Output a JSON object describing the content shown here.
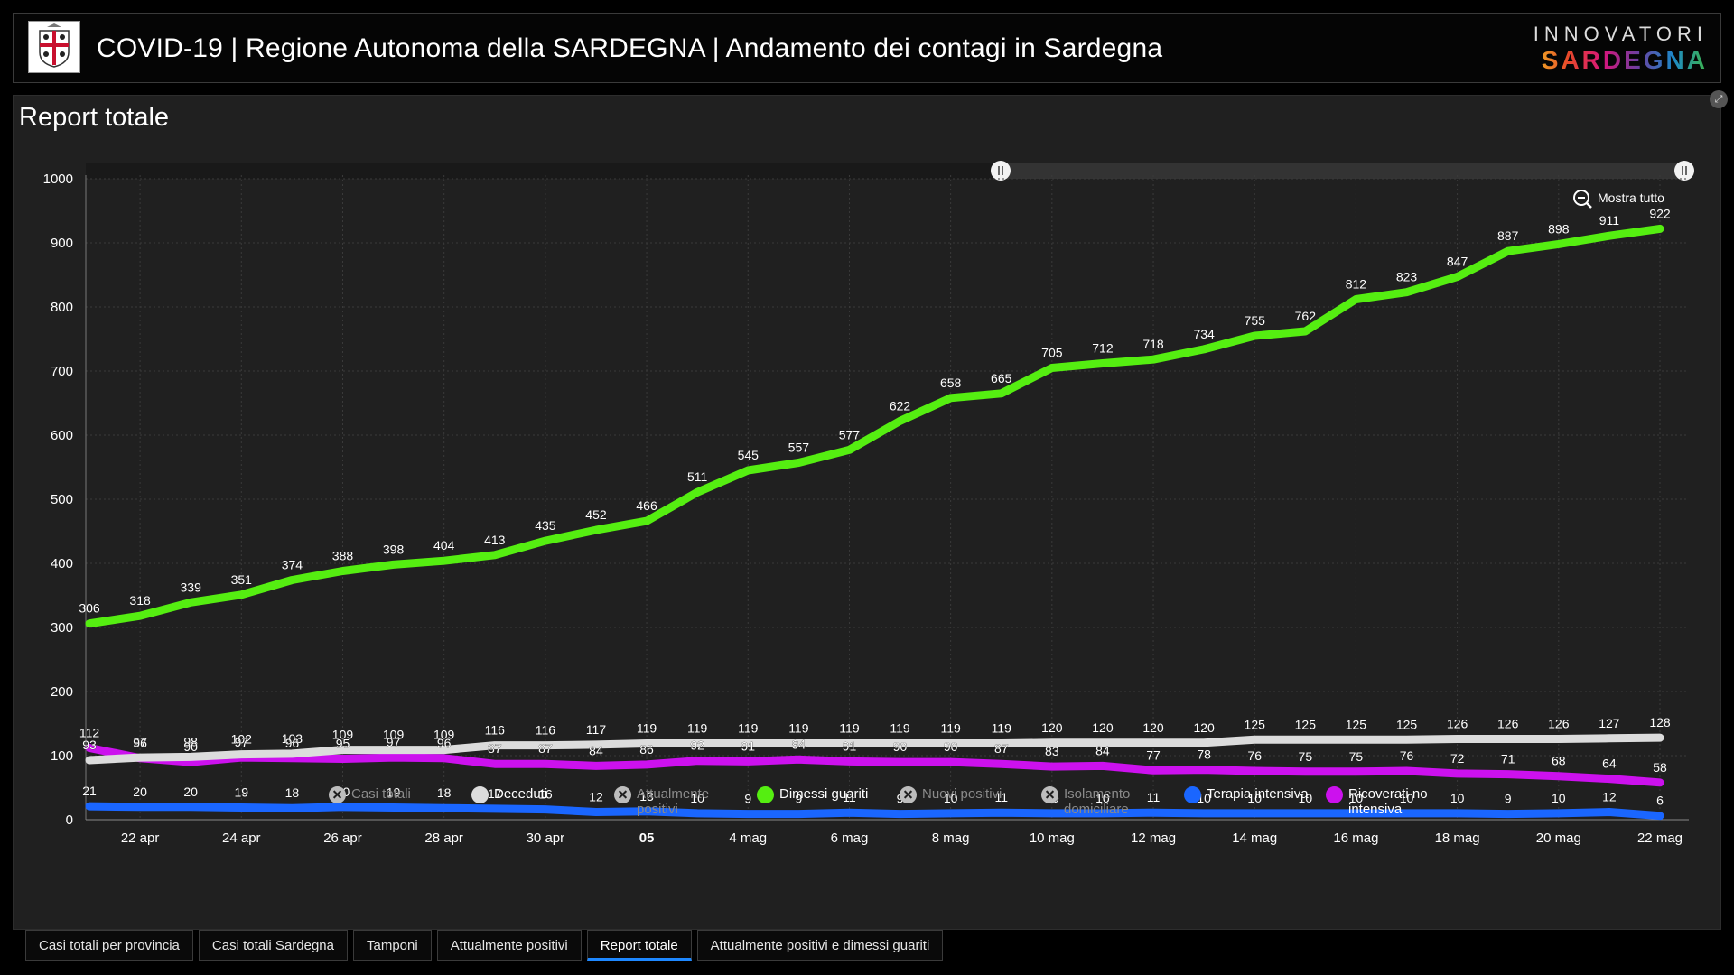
{
  "header": {
    "title": "COVID-19 | Regione Autonoma della SARDEGNA | Andamento dei contagi in Sardegna",
    "brand_top": "INNOVATORI",
    "brand_bottom": "SARDEGNA"
  },
  "panel": {
    "title": "Report totale",
    "zoom_label": "Mostra tutto"
  },
  "colors": {
    "dimessi": "#55ee11",
    "deceduti": "#dcdcdc",
    "terapia": "#1a66ff",
    "ricoverati": "#cc11ee",
    "background": "#202020",
    "grid": "#3a3a3a"
  },
  "legend": [
    {
      "label": "Casi totali",
      "enabled": false,
      "color": "#bdbdbd"
    },
    {
      "label": "Deceduti",
      "enabled": true,
      "color": "#dcdcdc"
    },
    {
      "label": "Attualmente positivi",
      "enabled": false,
      "color": "#bdbdbd"
    },
    {
      "label": "Dimessi guariti",
      "enabled": true,
      "color": "#55ee11"
    },
    {
      "label": "Nuovi positivi",
      "enabled": false,
      "color": "#bdbdbd"
    },
    {
      "label": "Isolamento domiciliare",
      "enabled": false,
      "color": "#bdbdbd"
    },
    {
      "label": "Terapia intensiva",
      "enabled": true,
      "color": "#1a66ff"
    },
    {
      "label": "Ricoverati no intensiva",
      "enabled": true,
      "color": "#cc11ee"
    }
  ],
  "tabs": [
    {
      "label": "Casi totali per provincia",
      "active": false
    },
    {
      "label": "Casi totali Sardegna",
      "active": false
    },
    {
      "label": "Tamponi",
      "active": false
    },
    {
      "label": "Attualmente positivi",
      "active": false
    },
    {
      "label": "Report totale",
      "active": true
    },
    {
      "label": "Attualmente positivi e dimessi guariti",
      "active": false
    }
  ],
  "chart_data": {
    "type": "line",
    "x": [
      "2020-04-21",
      "2020-04-22",
      "2020-04-23",
      "2020-04-24",
      "2020-04-25",
      "2020-04-26",
      "2020-04-27",
      "2020-04-28",
      "2020-04-29",
      "2020-04-30",
      "2020-05-01",
      "2020-05-02",
      "2020-05-03",
      "2020-05-04",
      "2020-05-05",
      "2020-05-06",
      "2020-05-07",
      "2020-05-08",
      "2020-05-09",
      "2020-05-10",
      "2020-05-11",
      "2020-05-12",
      "2020-05-13",
      "2020-05-14",
      "2020-05-15",
      "2020-05-16",
      "2020-05-17",
      "2020-05-18",
      "2020-05-19",
      "2020-05-20",
      "2020-05-21",
      "2020-05-22"
    ],
    "x_ticks": [
      {
        "x": "2020-04-22",
        "label": "22 apr"
      },
      {
        "x": "2020-04-24",
        "label": "24 apr"
      },
      {
        "x": "2020-04-26",
        "label": "26 apr"
      },
      {
        "x": "2020-04-28",
        "label": "28 apr"
      },
      {
        "x": "2020-04-30",
        "label": "30 apr"
      },
      {
        "x": "2020-05-02",
        "label": "05",
        "bold": true
      },
      {
        "x": "2020-05-04",
        "label": "4 mag"
      },
      {
        "x": "2020-05-06",
        "label": "6 mag"
      },
      {
        "x": "2020-05-08",
        "label": "8 mag"
      },
      {
        "x": "2020-05-10",
        "label": "10 mag"
      },
      {
        "x": "2020-05-12",
        "label": "12 mag"
      },
      {
        "x": "2020-05-14",
        "label": "14 mag"
      },
      {
        "x": "2020-05-16",
        "label": "16 mag"
      },
      {
        "x": "2020-05-18",
        "label": "18 mag"
      },
      {
        "x": "2020-05-20",
        "label": "20 mag"
      },
      {
        "x": "2020-05-22",
        "label": "22 mag"
      }
    ],
    "ylim": [
      0,
      1000
    ],
    "y_ticks": [
      0,
      100,
      200,
      300,
      400,
      500,
      600,
      700,
      800,
      900,
      1000
    ],
    "grid": true,
    "series": [
      {
        "name": "Dimessi guariti",
        "color": "#55ee11",
        "values": [
          306,
          318,
          339,
          351,
          374,
          388,
          398,
          404,
          413,
          435,
          452,
          466,
          511,
          545,
          557,
          577,
          622,
          658,
          665,
          705,
          712,
          718,
          734,
          755,
          762,
          812,
          823,
          847,
          887,
          898,
          911,
          922
        ]
      },
      {
        "name": "Deceduti",
        "color": "#dcdcdc",
        "values": [
          93,
          97,
          98,
          102,
          103,
          109,
          109,
          109,
          116,
          116,
          117,
          119,
          119,
          119,
          119,
          119,
          119,
          119,
          119,
          120,
          120,
          120,
          120,
          125,
          125,
          125,
          125,
          126,
          126,
          126,
          127,
          128
        ]
      },
      {
        "name": "Ricoverati no intensiva",
        "color": "#cc11ee",
        "values": [
          112,
          96,
          90,
          97,
          96,
          95,
          97,
          96,
          87,
          87,
          84,
          86,
          92,
          91,
          94,
          91,
          90,
          90,
          87,
          83,
          84,
          77,
          78,
          76,
          75,
          75,
          76,
          72,
          71,
          68,
          64,
          58
        ]
      },
      {
        "name": "Terapia intensiva",
        "color": "#1a66ff",
        "values": [
          21,
          20,
          20,
          19,
          18,
          20,
          19,
          18,
          17,
          16,
          12,
          13,
          10,
          9,
          9,
          11,
          9,
          10,
          11,
          10,
          10,
          11,
          10,
          10,
          10,
          10,
          10,
          10,
          9,
          10,
          12,
          6
        ]
      }
    ]
  }
}
